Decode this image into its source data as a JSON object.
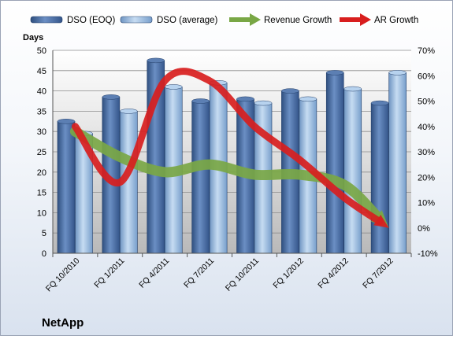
{
  "chart_data": {
    "type": "bar",
    "brand": "NetApp",
    "y_left_title": "Days",
    "categories": [
      "FQ 10/2010",
      "FQ 1/2011",
      "FQ 4/2011",
      "FQ 7/2011",
      "FQ 10/2011",
      "FQ 1/2012",
      "FQ 4/2012",
      "FQ 7/2012"
    ],
    "ylim_left": [
      0,
      50
    ],
    "ylim_right": [
      -10,
      70
    ],
    "y_left_ticks": [
      "0",
      "5",
      "10",
      "15",
      "20",
      "25",
      "30",
      "35",
      "40",
      "45",
      "50"
    ],
    "y_right_ticks": [
      "-10%",
      "0%",
      "10%",
      "20%",
      "30%",
      "40%",
      "50%",
      "60%",
      "70%"
    ],
    "grid": "horizontal",
    "legend_position": "top",
    "series": [
      {
        "name": "DSO (EOQ)",
        "type": "bar",
        "axis": "left",
        "color": "#4a6fa5",
        "values": [
          32.5,
          38.5,
          47.5,
          37.5,
          38,
          40,
          44.5,
          37
        ]
      },
      {
        "name": "DSO (average)",
        "type": "bar",
        "axis": "left",
        "color": "#9dbfe0",
        "values": [
          29.5,
          35,
          41,
          42,
          37,
          38,
          40.5,
          44.5
        ]
      },
      {
        "name": "Revenue Growth",
        "type": "arrow",
        "axis": "right",
        "color": "#79a745",
        "values": [
          38,
          28,
          22,
          25,
          21,
          21,
          17,
          0
        ]
      },
      {
        "name": "AR Growth",
        "type": "arrow",
        "axis": "right",
        "color": "#d81e1e",
        "values": [
          40,
          18,
          58,
          58,
          40,
          27,
          12,
          0
        ]
      }
    ]
  }
}
